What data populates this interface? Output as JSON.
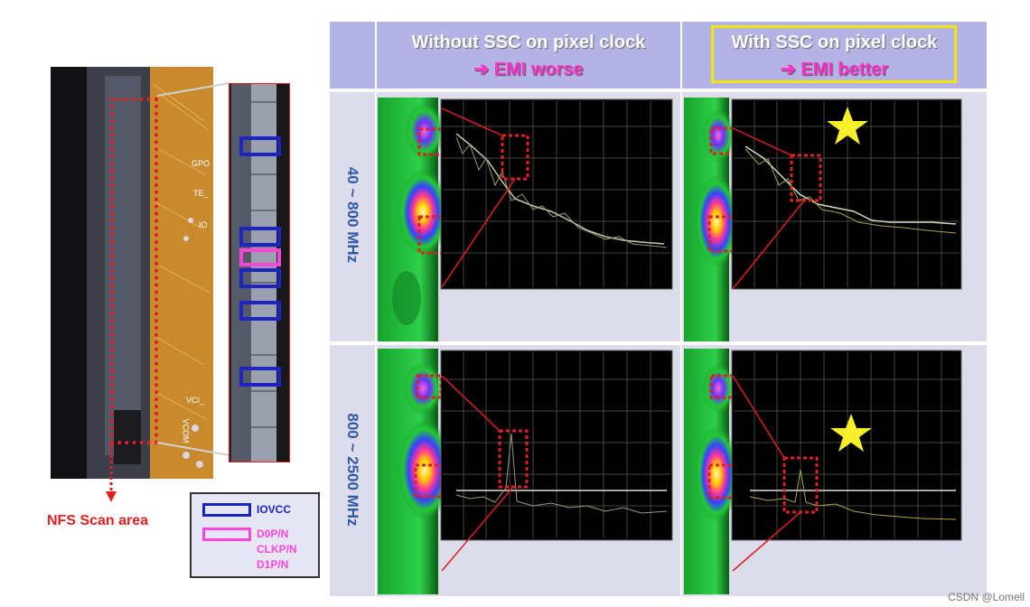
{
  "photo": {
    "pcb_labels": [
      "GPO",
      "TE_",
      "IO",
      "VCI_",
      "VCOM"
    ],
    "nfs_caption": "NFS Scan area"
  },
  "legend": {
    "items": [
      {
        "label": "IOVCC",
        "color": "#1c24c4"
      },
      {
        "label": "D0P/N",
        "color": "#ff44dd"
      },
      {
        "label": "CLKP/N",
        "color": "#ff44dd"
      },
      {
        "label": "D1P/N",
        "color": "#ff44dd"
      }
    ]
  },
  "table": {
    "columns": [
      {
        "title": "Without SSC on pixel clock",
        "subtitle": "➔ EMI worse",
        "highlighted": false
      },
      {
        "title": "With SSC on pixel clock",
        "subtitle": "➔ EMI better",
        "highlighted": true
      }
    ],
    "rows": [
      {
        "label": "40 ~ 800 MHz"
      },
      {
        "label": "800 ~ 2500 MHz"
      }
    ]
  },
  "colors": {
    "header_bg": "#b3b3e6",
    "accent_red": "#e02020",
    "highlight_yellow": "#f2e600",
    "subtitle_magenta": "#ff33cc"
  },
  "credit": "CSDN @Lomell"
}
